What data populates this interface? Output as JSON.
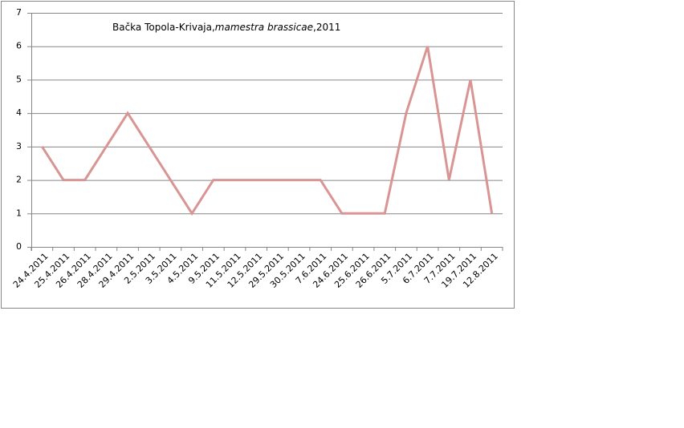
{
  "chart_data": {
    "type": "line",
    "title": [
      "Bačka Topola-Krivaja,",
      "mamestra brassicae",
      ",2011"
    ],
    "title_italic": [
      false,
      true,
      false
    ],
    "categories": [
      "24.4.2011",
      "25.4.2011",
      "26.4.2011",
      "28.4.2011",
      "29.4.2011",
      "2.5.2011",
      "3.5.2011",
      "4.5.2011",
      "9.5.2011",
      "11.5.2011",
      "12.5.2011",
      "29.5.2011",
      "30.5.2011",
      "7.6.2011",
      "24.6.2011",
      "25.6.2011",
      "26.6.2011",
      "5.7.2011",
      "6.7.2011",
      "7.7.2011",
      "19.7.2011",
      "12.8.2011"
    ],
    "values": [
      3,
      2,
      2,
      3,
      4,
      3,
      2,
      1,
      2,
      2,
      2,
      2,
      2,
      2,
      1,
      1,
      1,
      4,
      6,
      2,
      5,
      1
    ],
    "color": "#d99594",
    "ylim": [
      0,
      7
    ],
    "yticks": [
      0,
      1,
      2,
      3,
      4,
      5,
      6,
      7
    ],
    "grid": true
  }
}
